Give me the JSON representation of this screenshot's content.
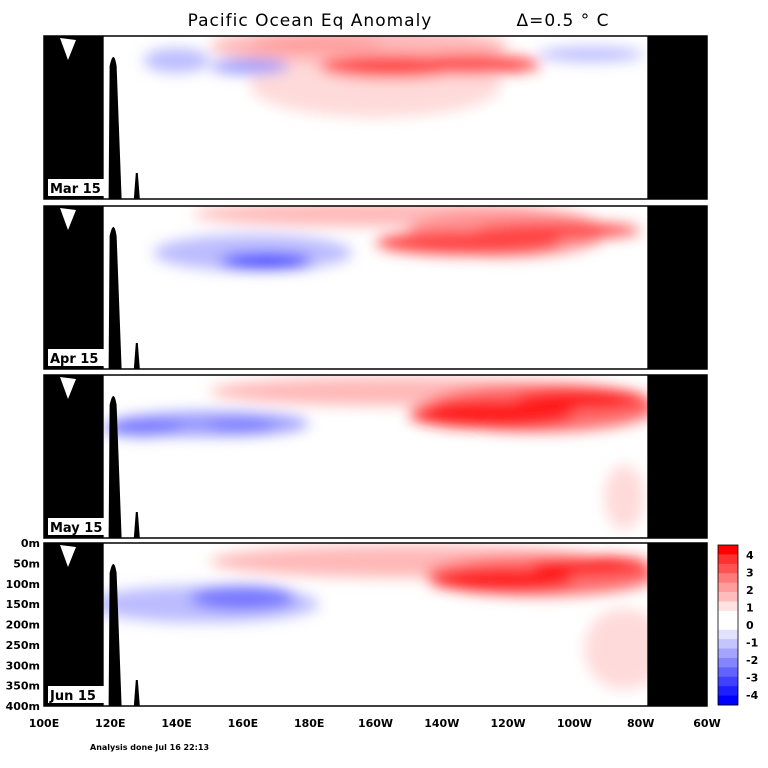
{
  "chart_data": {
    "type": "heatmap",
    "title": "Pacific Ocean Eq Anomaly",
    "contour_interval": "Δ=0.5 ° C",
    "x_ticks": [
      "100E",
      "120E",
      "140E",
      "160E",
      "180E",
      "160W",
      "140W",
      "120W",
      "100W",
      "80W",
      "60W"
    ],
    "y_ticks": [
      "0m",
      "50m",
      "100m",
      "150m",
      "200m",
      "250m",
      "300m",
      "350m",
      "400m"
    ],
    "xlim_deg_east": [
      100,
      300
    ],
    "ylim_depth_m": [
      0,
      400
    ],
    "land_deg_east": [
      [
        100,
        118
      ],
      [
        282,
        300
      ]
    ],
    "legend": {
      "labels": [
        "4",
        "3",
        "2",
        "1",
        "0",
        "-1",
        "-2",
        "-3",
        "-4"
      ],
      "colors": [
        "#ff0000",
        "#ff3030",
        "#ff5252",
        "#ff7a7a",
        "#ff9c9c",
        "#ffbcbc",
        "#ffe2e2",
        "#ffffff",
        "#ffffff",
        "#e2e2ff",
        "#c4c4ff",
        "#a4a4ff",
        "#8484ff",
        "#6262ff",
        "#4040ff",
        "#1e1eff",
        "#0000ff"
      ]
    },
    "panels": [
      {
        "month": "Mar 15",
        "warm_blobs": [
          {
            "lon": 195,
            "depth": 25,
            "rx": 45,
            "ry": 45,
            "value": 1.3
          },
          {
            "lon": 200,
            "depth": 120,
            "rx": 38,
            "ry": 80,
            "value": 0.8
          },
          {
            "lon": 205,
            "depth": 75,
            "rx": 22,
            "ry": 28,
            "value": 2.8
          },
          {
            "lon": 228,
            "depth": 70,
            "rx": 22,
            "ry": 24,
            "value": 2.5
          },
          {
            "lon": 182,
            "depth": 20,
            "rx": 20,
            "ry": 16,
            "value": 1.9
          }
        ],
        "cold_blobs": [
          {
            "lon": 140,
            "depth": 60,
            "rx": 10,
            "ry": 30,
            "value": -1.1
          },
          {
            "lon": 162,
            "depth": 75,
            "rx": 12,
            "ry": 18,
            "value": -1.5
          },
          {
            "lon": 265,
            "depth": 45,
            "rx": 16,
            "ry": 18,
            "value": -1.0
          }
        ]
      },
      {
        "month": "Apr 15",
        "warm_blobs": [
          {
            "lon": 200,
            "depth": 20,
            "rx": 55,
            "ry": 30,
            "value": 1.1
          },
          {
            "lon": 240,
            "depth": 65,
            "rx": 30,
            "ry": 60,
            "value": 1.5
          },
          {
            "lon": 228,
            "depth": 90,
            "rx": 28,
            "ry": 30,
            "value": 2.8
          },
          {
            "lon": 255,
            "depth": 60,
            "rx": 25,
            "ry": 20,
            "value": 2.8
          }
        ],
        "cold_blobs": [
          {
            "lon": 163,
            "depth": 115,
            "rx": 30,
            "ry": 45,
            "value": -1.2
          },
          {
            "lon": 167,
            "depth": 135,
            "rx": 14,
            "ry": 18,
            "value": -3.0
          }
        ]
      },
      {
        "month": "May 15",
        "warm_blobs": [
          {
            "lon": 205,
            "depth": 40,
            "rx": 55,
            "ry": 35,
            "value": 1.3
          },
          {
            "lon": 250,
            "depth": 80,
            "rx": 35,
            "ry": 60,
            "value": 2.0
          },
          {
            "lon": 235,
            "depth": 95,
            "rx": 25,
            "ry": 35,
            "value": 3.0
          },
          {
            "lon": 262,
            "depth": 60,
            "rx": 20,
            "ry": 25,
            "value": 3.0
          },
          {
            "lon": 275,
            "depth": 300,
            "rx": 6,
            "ry": 80,
            "value": 0.8
          }
        ],
        "cold_blobs": [
          {
            "lon": 150,
            "depth": 120,
            "rx": 30,
            "ry": 30,
            "value": -1.5
          },
          {
            "lon": 130,
            "depth": 130,
            "rx": 12,
            "ry": 20,
            "value": -2.2
          },
          {
            "lon": 160,
            "depth": 125,
            "rx": 10,
            "ry": 14,
            "value": -2.3
          }
        ]
      },
      {
        "month": "Jun 15",
        "warm_blobs": [
          {
            "lon": 210,
            "depth": 45,
            "rx": 60,
            "ry": 40,
            "value": 1.4
          },
          {
            "lon": 250,
            "depth": 80,
            "rx": 35,
            "ry": 50,
            "value": 2.2
          },
          {
            "lon": 238,
            "depth": 90,
            "rx": 22,
            "ry": 28,
            "value": 3.1
          },
          {
            "lon": 265,
            "depth": 55,
            "rx": 18,
            "ry": 22,
            "value": 3.2
          },
          {
            "lon": 275,
            "depth": 260,
            "rx": 12,
            "ry": 100,
            "value": 0.7
          }
        ],
        "cold_blobs": [
          {
            "lon": 148,
            "depth": 150,
            "rx": 35,
            "ry": 45,
            "value": -1.3
          },
          {
            "lon": 160,
            "depth": 135,
            "rx": 16,
            "ry": 30,
            "value": -2.4
          }
        ]
      }
    ]
  },
  "footer": {
    "analysis_note": "Analysis done Jul 16 22:13"
  }
}
